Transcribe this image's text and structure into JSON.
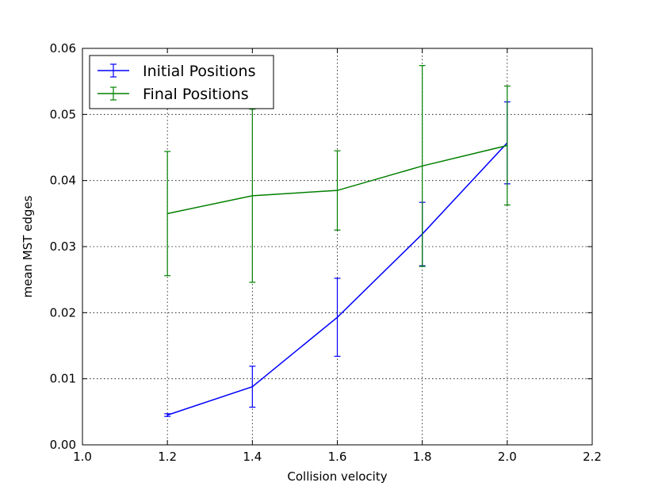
{
  "chart_data": {
    "type": "line",
    "xlabel": "Collision velocity",
    "ylabel": "mean MST edges",
    "xlim": [
      1.0,
      2.2
    ],
    "ylim": [
      0.0,
      0.06
    ],
    "x_ticks": [
      1.0,
      1.2,
      1.4,
      1.6,
      1.8,
      2.0,
      2.2
    ],
    "x_tick_labels": [
      "1.0",
      "1.2",
      "1.4",
      "1.6",
      "1.8",
      "2.0",
      "2.2"
    ],
    "y_ticks": [
      0.0,
      0.01,
      0.02,
      0.03,
      0.04,
      0.05,
      0.06
    ],
    "y_tick_labels": [
      "0.00",
      "0.01",
      "0.02",
      "0.03",
      "0.04",
      "0.05",
      "0.06"
    ],
    "grid": true,
    "legend_position": "top-left",
    "series": [
      {
        "name": "Initial Positions",
        "color": "#0000ff",
        "x": [
          1.2,
          1.4,
          1.6,
          1.8,
          2.0
        ],
        "y": [
          0.0045,
          0.0088,
          0.0193,
          0.0319,
          0.0457
        ],
        "error": [
          0.0002,
          0.0031,
          0.0059,
          0.0048,
          0.0062
        ]
      },
      {
        "name": "Final Positions",
        "color": "#008000",
        "x": [
          1.2,
          1.4,
          1.6,
          1.8,
          2.0
        ],
        "y": [
          0.035,
          0.0377,
          0.0385,
          0.0422,
          0.0453
        ],
        "error": [
          0.0094,
          0.0131,
          0.006,
          0.0152,
          0.009
        ]
      }
    ]
  }
}
